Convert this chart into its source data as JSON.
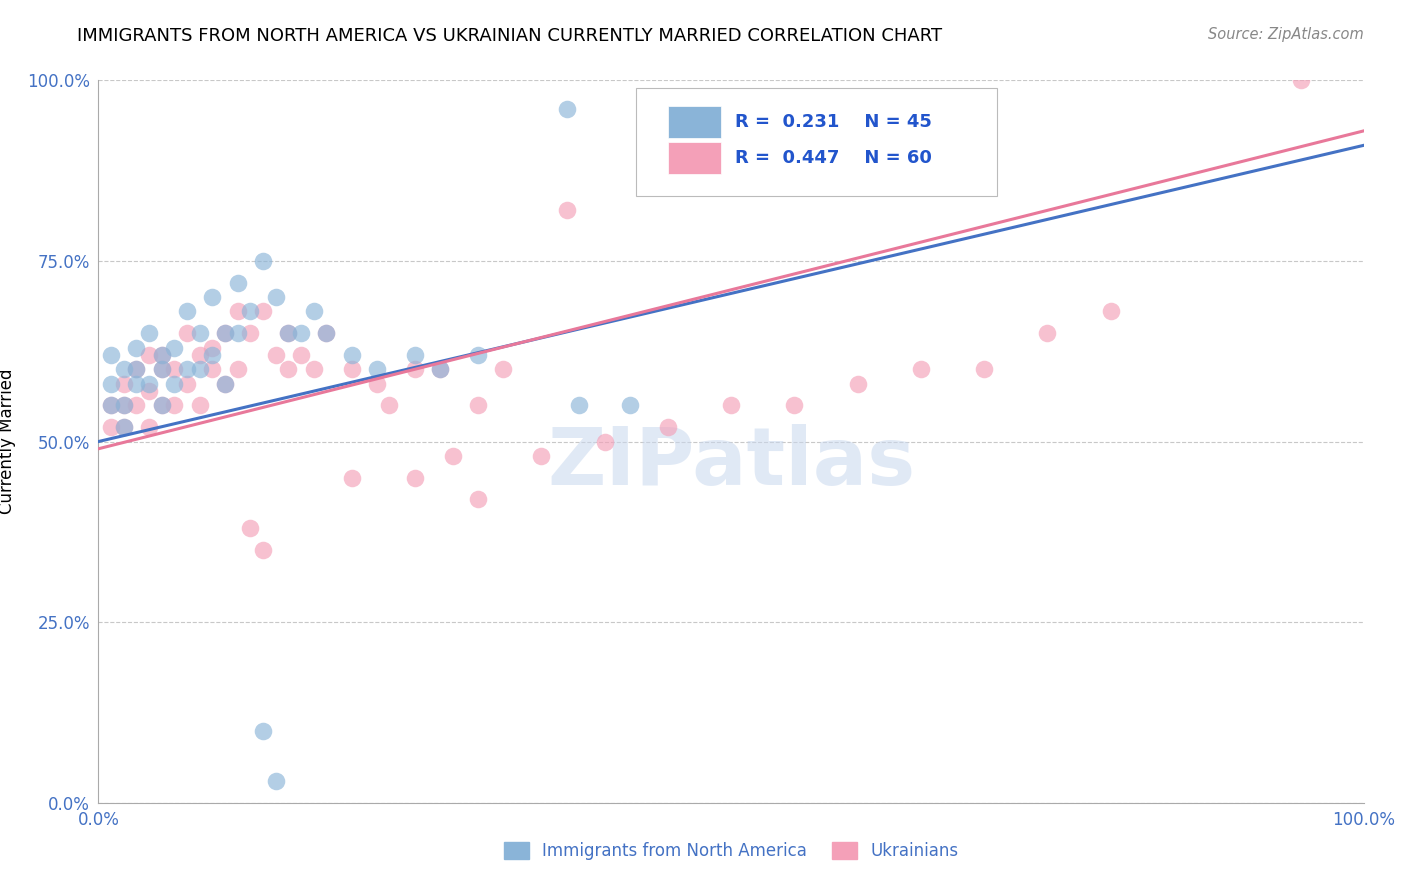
{
  "title": "IMMIGRANTS FROM NORTH AMERICA VS UKRAINIAN CURRENTLY MARRIED CORRELATION CHART",
  "source": "Source: ZipAtlas.com",
  "ylabel": "Currently Married",
  "xlim": [
    0.0,
    1.0
  ],
  "ylim": [
    0.0,
    1.0
  ],
  "xtick_positions": [
    0.0,
    1.0
  ],
  "xtick_labels": [
    "0.0%",
    "100.0%"
  ],
  "ytick_positions": [
    0.0,
    0.25,
    0.5,
    0.75,
    1.0
  ],
  "ytick_labels": [
    "0.0%",
    "25.0%",
    "50.0%",
    "75.0%",
    "100.0%"
  ],
  "blue_label": "Immigrants from North America",
  "pink_label": "Ukrainians",
  "blue_R": 0.231,
  "blue_N": 45,
  "pink_R": 0.447,
  "pink_N": 60,
  "blue_color": "#8ab4d8",
  "pink_color": "#f4a0b8",
  "blue_line_color": "#4472c4",
  "pink_line_color": "#e8789a",
  "watermark": "ZIPatlas",
  "blue_line_x0": 0.0,
  "blue_line_y0": 0.5,
  "blue_line_x1": 1.0,
  "blue_line_y1": 0.91,
  "pink_line_x0": 0.0,
  "pink_line_y0": 0.49,
  "pink_line_x1": 1.0,
  "pink_line_y1": 0.93,
  "blue_x": [
    0.01,
    0.01,
    0.01,
    0.02,
    0.02,
    0.02,
    0.03,
    0.03,
    0.03,
    0.04,
    0.04,
    0.05,
    0.05,
    0.05,
    0.06,
    0.06,
    0.07,
    0.07,
    0.08,
    0.08,
    0.09,
    0.09,
    0.1,
    0.1,
    0.11,
    0.11,
    0.12,
    0.13,
    0.14,
    0.15,
    0.16,
    0.17,
    0.18,
    0.2,
    0.22,
    0.25,
    0.27,
    0.3,
    0.13,
    0.14,
    0.37,
    0.46,
    0.48,
    0.38,
    0.42
  ],
  "blue_y": [
    0.58,
    0.62,
    0.55,
    0.6,
    0.55,
    0.52,
    0.63,
    0.58,
    0.6,
    0.65,
    0.58,
    0.62,
    0.55,
    0.6,
    0.63,
    0.58,
    0.68,
    0.6,
    0.65,
    0.6,
    0.7,
    0.62,
    0.65,
    0.58,
    0.72,
    0.65,
    0.68,
    0.75,
    0.7,
    0.65,
    0.65,
    0.68,
    0.65,
    0.62,
    0.6,
    0.62,
    0.6,
    0.62,
    0.1,
    0.03,
    0.96,
    0.96,
    0.96,
    0.55,
    0.55
  ],
  "pink_x": [
    0.01,
    0.01,
    0.02,
    0.02,
    0.02,
    0.03,
    0.03,
    0.04,
    0.04,
    0.04,
    0.05,
    0.05,
    0.05,
    0.06,
    0.06,
    0.07,
    0.07,
    0.08,
    0.08,
    0.09,
    0.09,
    0.1,
    0.1,
    0.11,
    0.11,
    0.12,
    0.13,
    0.14,
    0.15,
    0.15,
    0.16,
    0.17,
    0.18,
    0.2,
    0.22,
    0.23,
    0.25,
    0.27,
    0.3,
    0.32,
    0.35,
    0.37,
    0.46,
    0.47,
    0.12,
    0.13,
    0.2,
    0.25,
    0.28,
    0.3,
    0.4,
    0.45,
    0.5,
    0.55,
    0.6,
    0.65,
    0.7,
    0.75,
    0.8,
    0.95
  ],
  "pink_y": [
    0.55,
    0.52,
    0.58,
    0.52,
    0.55,
    0.6,
    0.55,
    0.62,
    0.57,
    0.52,
    0.6,
    0.55,
    0.62,
    0.55,
    0.6,
    0.65,
    0.58,
    0.62,
    0.55,
    0.6,
    0.63,
    0.65,
    0.58,
    0.68,
    0.6,
    0.65,
    0.68,
    0.62,
    0.6,
    0.65,
    0.62,
    0.6,
    0.65,
    0.6,
    0.58,
    0.55,
    0.6,
    0.6,
    0.55,
    0.6,
    0.48,
    0.82,
    0.96,
    0.96,
    0.38,
    0.35,
    0.45,
    0.45,
    0.48,
    0.42,
    0.5,
    0.52,
    0.55,
    0.55,
    0.58,
    0.6,
    0.6,
    0.65,
    0.68,
    1.0
  ]
}
